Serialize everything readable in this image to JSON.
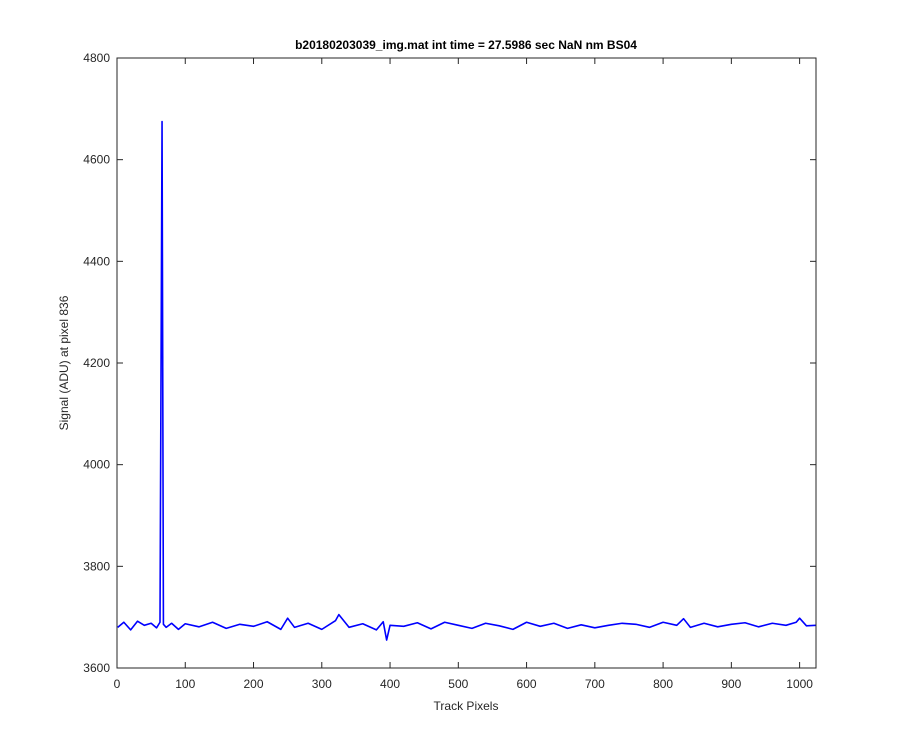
{
  "chart_data": {
    "type": "line",
    "title": "b20180203039_img.mat int time = 27.5986 sec  NaN nm BS04",
    "xlabel": "Track Pixels",
    "ylabel": "Signal (ADU) at pixel 836",
    "xlim": [
      0,
      1024
    ],
    "ylim": [
      3600,
      4800
    ],
    "xticks": [
      0,
      100,
      200,
      300,
      400,
      500,
      600,
      700,
      800,
      900,
      1000
    ],
    "yticks": [
      3600,
      3800,
      4000,
      4200,
      4400,
      4600,
      4800
    ],
    "xtick_labels": [
      "0",
      "100",
      "200",
      "300",
      "400",
      "500",
      "600",
      "700",
      "800",
      "900",
      "1000"
    ],
    "ytick_labels": [
      "3600",
      "3800",
      "4000",
      "4200",
      "4400",
      "4600",
      "4800"
    ],
    "grid": false,
    "series": [
      {
        "color": "#0000ff",
        "x": [
          1,
          10,
          20,
          30,
          40,
          50,
          58,
          63,
          66,
          68,
          72,
          80,
          90,
          100,
          120,
          140,
          160,
          180,
          200,
          220,
          240,
          250,
          260,
          280,
          300,
          320,
          325,
          340,
          360,
          380,
          390,
          395,
          400,
          420,
          440,
          460,
          480,
          500,
          520,
          540,
          560,
          580,
          600,
          620,
          640,
          660,
          680,
          700,
          720,
          740,
          760,
          780,
          800,
          820,
          830,
          840,
          860,
          880,
          900,
          920,
          940,
          960,
          980,
          995,
          1000,
          1010,
          1024
        ],
        "y": [
          3680,
          3690,
          3675,
          3692,
          3684,
          3688,
          3679,
          3690,
          4675,
          3686,
          3680,
          3688,
          3676,
          3687,
          3681,
          3690,
          3678,
          3686,
          3682,
          3691,
          3676,
          3698,
          3680,
          3688,
          3676,
          3693,
          3705,
          3680,
          3687,
          3675,
          3691,
          3655,
          3684,
          3682,
          3689,
          3677,
          3690,
          3684,
          3678,
          3688,
          3683,
          3676,
          3690,
          3682,
          3688,
          3678,
          3685,
          3679,
          3684,
          3688,
          3686,
          3680,
          3690,
          3684,
          3697,
          3680,
          3688,
          3681,
          3686,
          3689,
          3681,
          3688,
          3684,
          3690,
          3698,
          3683,
          3684
        ]
      }
    ]
  }
}
